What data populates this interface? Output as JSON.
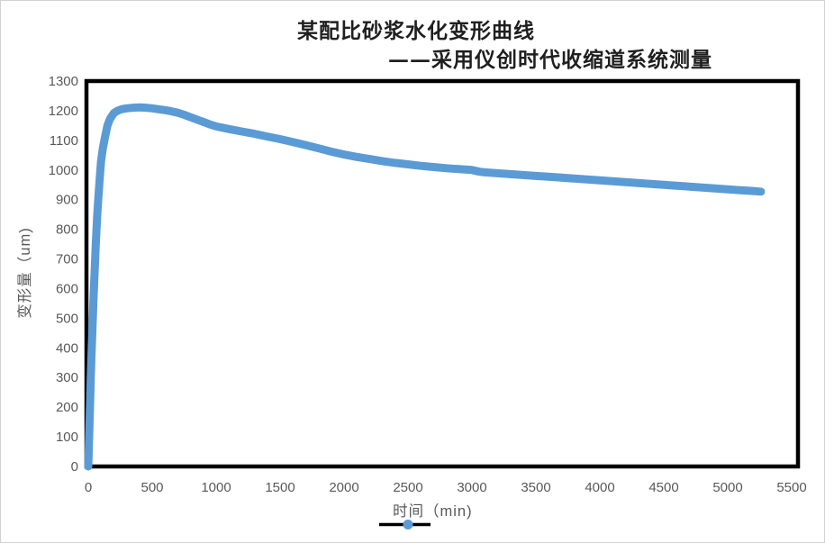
{
  "title": {
    "line1": "某配比砂浆水化变形曲线",
    "line2": "——采用仪创时代收缩道系统测量"
  },
  "colors": {
    "series": "#5B9BD5",
    "axis_text": "#595959",
    "title_text": "#1f1f1f",
    "plot_border": "#000000",
    "legend_line": "#000000",
    "figure_border": "#d2d2d2",
    "background": "#ffffff"
  },
  "legend": {
    "marker": "black-line-with-blue-circle"
  },
  "chart_data": {
    "type": "line",
    "title": "某配比砂浆水化变形曲线 ——采用仪创时代收缩道系统测量",
    "xlabel": "时间（min)",
    "ylabel": "变形量（um)",
    "xlim": [
      0,
      5500
    ],
    "ylim": [
      0,
      1300
    ],
    "x_ticks": [
      0,
      500,
      1000,
      1500,
      2000,
      2500,
      3000,
      3500,
      4000,
      4500,
      5000,
      5500
    ],
    "y_ticks": [
      0,
      100,
      200,
      300,
      400,
      500,
      600,
      700,
      800,
      900,
      1000,
      1100,
      1200,
      1300
    ],
    "grid": false,
    "legend_position": "bottom",
    "series": [
      {
        "name": "时间（min)",
        "color": "#5B9BD5",
        "line_width": 9,
        "points": [
          [
            0,
            0
          ],
          [
            5,
            70
          ],
          [
            10,
            145
          ],
          [
            15,
            220
          ],
          [
            20,
            300
          ],
          [
            25,
            370
          ],
          [
            30,
            435
          ],
          [
            40,
            555
          ],
          [
            50,
            660
          ],
          [
            60,
            760
          ],
          [
            70,
            845
          ],
          [
            80,
            915
          ],
          [
            90,
            975
          ],
          [
            100,
            1030
          ],
          [
            115,
            1075
          ],
          [
            130,
            1110
          ],
          [
            150,
            1150
          ],
          [
            170,
            1172
          ],
          [
            200,
            1192
          ],
          [
            230,
            1200
          ],
          [
            260,
            1205
          ],
          [
            300,
            1208
          ],
          [
            350,
            1210
          ],
          [
            400,
            1211
          ],
          [
            450,
            1210
          ],
          [
            500,
            1208
          ],
          [
            550,
            1205
          ],
          [
            600,
            1202
          ],
          [
            650,
            1198
          ],
          [
            700,
            1193
          ],
          [
            750,
            1186
          ],
          [
            800,
            1178
          ],
          [
            850,
            1170
          ],
          [
            900,
            1162
          ],
          [
            950,
            1154
          ],
          [
            1000,
            1147
          ],
          [
            1100,
            1138
          ],
          [
            1200,
            1130
          ],
          [
            1300,
            1122
          ],
          [
            1400,
            1113
          ],
          [
            1500,
            1104
          ],
          [
            1600,
            1094
          ],
          [
            1700,
            1084
          ],
          [
            1800,
            1073
          ],
          [
            1900,
            1062
          ],
          [
            2000,
            1052
          ],
          [
            2100,
            1044
          ],
          [
            2200,
            1037
          ],
          [
            2300,
            1030
          ],
          [
            2400,
            1024
          ],
          [
            2500,
            1019
          ],
          [
            2600,
            1014
          ],
          [
            2700,
            1010
          ],
          [
            2800,
            1006
          ],
          [
            2900,
            1003
          ],
          [
            3000,
            1000
          ],
          [
            3060,
            994
          ],
          [
            3100,
            992
          ],
          [
            3200,
            989
          ],
          [
            3300,
            986
          ],
          [
            3400,
            983
          ],
          [
            3500,
            980
          ],
          [
            3600,
            977
          ],
          [
            3700,
            974
          ],
          [
            3800,
            971
          ],
          [
            3900,
            968
          ],
          [
            4000,
            965
          ],
          [
            4100,
            962
          ],
          [
            4200,
            959
          ],
          [
            4300,
            956
          ],
          [
            4400,
            953
          ],
          [
            4500,
            950
          ],
          [
            4600,
            947
          ],
          [
            4700,
            944
          ],
          [
            4800,
            941
          ],
          [
            4900,
            938
          ],
          [
            5000,
            935
          ],
          [
            5100,
            932
          ],
          [
            5200,
            929
          ],
          [
            5260,
            927
          ]
        ]
      }
    ]
  }
}
